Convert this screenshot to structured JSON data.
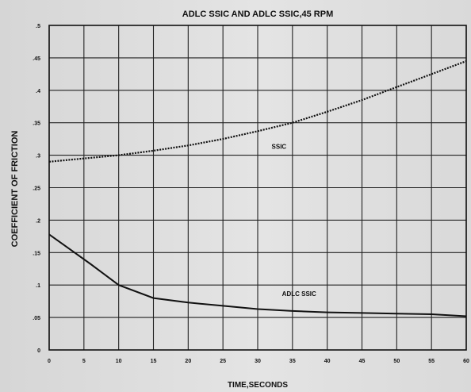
{
  "chart_data": {
    "type": "line",
    "title": "ADLC SSIC AND ADLC SSIC,45 RPM",
    "xlabel": "TIME,SECONDS",
    "ylabel": "COEFFICIENT OF FRICTION",
    "xlim": [
      0,
      60
    ],
    "ylim": [
      0,
      0.5
    ],
    "grid": true,
    "x_ticks": [
      "0",
      "5",
      "10",
      "15",
      "20",
      "25",
      "30",
      "35",
      "40",
      "45",
      "50",
      "55",
      "60"
    ],
    "y_ticks": [
      "0",
      ".05",
      ".1",
      ".15",
      ".2",
      ".25",
      ".3",
      ".35",
      ".4",
      ".45",
      ".5"
    ],
    "series": [
      {
        "name": "SSIC",
        "style": "dotted",
        "x": [
          0,
          5,
          10,
          15,
          20,
          25,
          30,
          35,
          40,
          45,
          50,
          55,
          60
        ],
        "y": [
          0.29,
          0.295,
          0.3,
          0.307,
          0.315,
          0.325,
          0.337,
          0.35,
          0.367,
          0.385,
          0.405,
          0.425,
          0.445
        ]
      },
      {
        "name": "ADLC SSIC",
        "style": "solid",
        "x": [
          0,
          3,
          6,
          10,
          15,
          20,
          25,
          30,
          35,
          40,
          45,
          50,
          55,
          60
        ],
        "y": [
          0.178,
          0.155,
          0.132,
          0.1,
          0.08,
          0.073,
          0.068,
          0.063,
          0.06,
          0.058,
          0.057,
          0.056,
          0.055,
          0.052
        ]
      }
    ],
    "annotations": [
      {
        "text": "SSIC",
        "x": 32,
        "y": 0.31
      },
      {
        "text": "ADLC SSIC",
        "x": 33.5,
        "y": 0.083
      }
    ]
  }
}
